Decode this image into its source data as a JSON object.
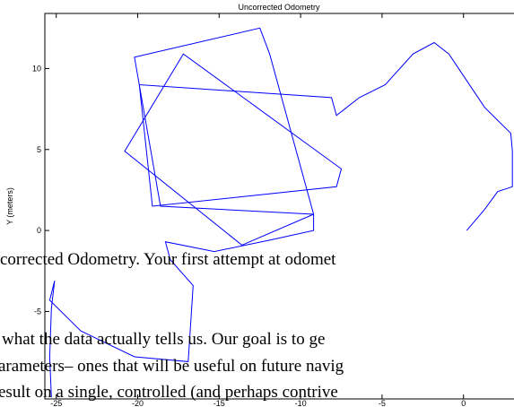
{
  "chart_data": {
    "type": "line",
    "title": "Uncorrected Odometry",
    "ylabel": "Y (meters)",
    "x": [
      -25.3,
      -25.4,
      -25.3,
      -25.1,
      -25.4,
      -23.5,
      -20.2,
      -16.9,
      -16.6,
      -18.0,
      -18.3,
      -15.3,
      -11.9,
      -9.2,
      -9.2,
      -11.9,
      -12.5,
      -20.2,
      -18.6,
      -9.2,
      -13.6,
      -20.8,
      -17.2,
      -7.5,
      -7.8,
      -19.1,
      -19.9,
      -8.1,
      -7.8,
      -6.4,
      -4.8,
      -3.1,
      -1.8,
      -0.9,
      1.3,
      2.9,
      3.0,
      3.0,
      2.1,
      1.3,
      0.2
    ],
    "series": [
      {
        "color": "#0000ff",
        "values": [
          -10.3,
          -7.8,
          -4.8,
          -3.1,
          -4.3,
          -6.2,
          -7.8,
          -8.1,
          -3.4,
          -1.8,
          -0.7,
          -1.3,
          -0.6,
          0.0,
          1.0,
          10.9,
          12.5,
          10.7,
          1.5,
          1.0,
          -0.9,
          4.9,
          10.9,
          3.8,
          2.7,
          1.5,
          9.0,
          8.2,
          7.1,
          8.2,
          9.0,
          10.9,
          11.6,
          10.9,
          7.6,
          6.0,
          4.9,
          2.7,
          2.4,
          1.3,
          0.0
        ]
      }
    ],
    "xlim": [
      -25.7,
      3.1
    ],
    "ylim": [
      -10.4,
      13.4
    ],
    "xticks": [
      -25,
      -20,
      -15,
      -10,
      -5,
      0
    ],
    "yticks": [
      -5,
      0,
      5,
      10
    ]
  },
  "document_text": [
    "corrected Odometry. Your first attempt at odomet",
    "what the data actually tells us. Our goal is to ge",
    "arameters– ones that will be useful on future navig",
    "esult on a single, controlled (and perhaps contrive"
  ]
}
